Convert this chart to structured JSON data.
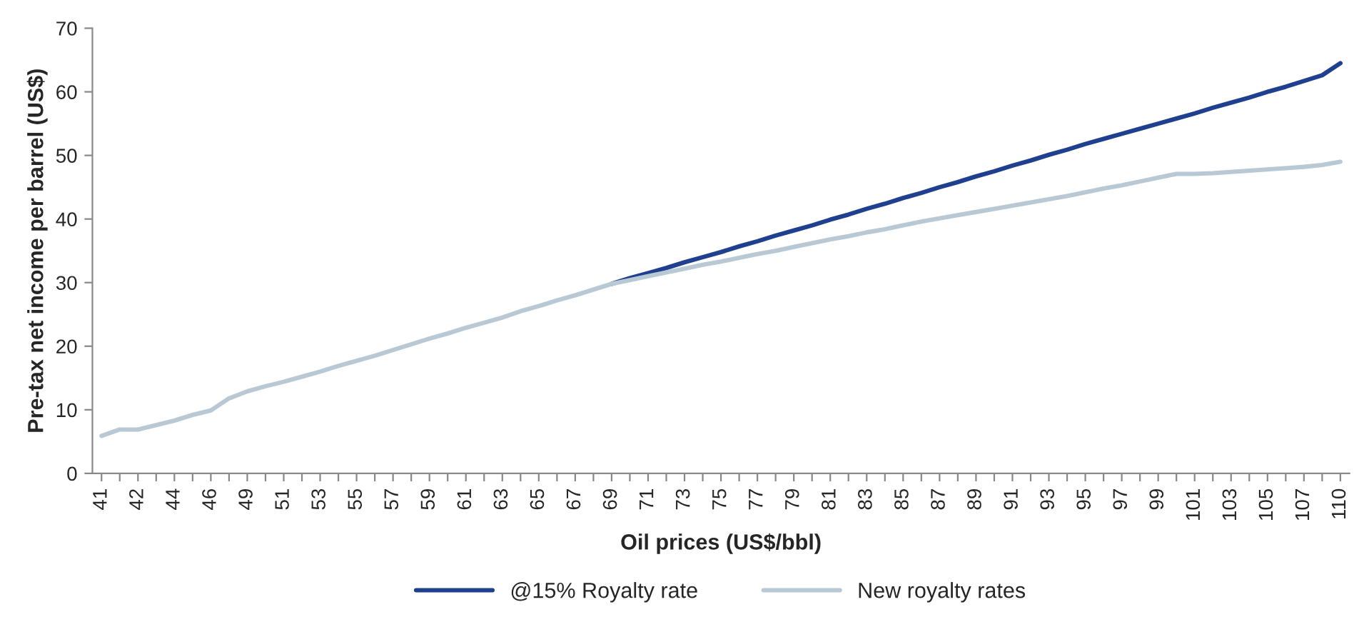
{
  "chart_data": {
    "type": "line",
    "xlabel": "Oil prices (US$/bbl)",
    "ylabel": "Pre-tax net income per barrel (US$)",
    "categories": [
      "41",
      null,
      "42",
      null,
      "44",
      null,
      "46",
      null,
      "49",
      null,
      "51",
      null,
      "53",
      null,
      "55",
      null,
      "57",
      null,
      "59",
      null,
      "61",
      null,
      "63",
      null,
      "65",
      null,
      "67",
      null,
      "69",
      null,
      "71",
      null,
      "73",
      null,
      "75",
      null,
      "77",
      null,
      "79",
      null,
      "81",
      null,
      "83",
      null,
      "85",
      null,
      "87",
      null,
      "89",
      null,
      "91",
      null,
      "93",
      null,
      "95",
      null,
      "97",
      null,
      "99",
      null,
      "101",
      null,
      "103",
      null,
      "105",
      null,
      "107",
      null,
      "110"
    ],
    "series": [
      {
        "name": "@15% Royalty rate",
        "color": "#1f3f8f",
        "values": [
          null,
          null,
          null,
          null,
          null,
          null,
          null,
          null,
          null,
          null,
          null,
          null,
          null,
          null,
          null,
          null,
          null,
          null,
          null,
          null,
          null,
          null,
          null,
          null,
          null,
          null,
          null,
          null,
          29.8,
          30.7,
          31.5,
          32.3,
          33.2,
          34.0,
          34.8,
          35.7,
          36.5,
          37.4,
          38.2,
          39.0,
          39.9,
          40.7,
          41.6,
          42.4,
          43.3,
          44.1,
          45.0,
          45.8,
          46.7,
          47.5,
          48.4,
          49.2,
          50.1,
          50.9,
          51.8,
          52.6,
          53.4,
          54.2,
          55.0,
          55.8,
          56.6,
          57.5,
          58.3,
          59.1,
          60.0,
          60.8,
          61.7,
          62.6,
          64.5
        ]
      },
      {
        "name": "New royalty rates",
        "color": "#b8c8d4",
        "values": [
          5.9,
          6.9,
          6.9,
          7.6,
          8.3,
          9.2,
          9.9,
          11.8,
          12.9,
          13.7,
          14.4,
          15.2,
          16.0,
          16.9,
          17.7,
          18.5,
          19.4,
          20.3,
          21.2,
          22.0,
          22.9,
          23.7,
          24.5,
          25.5,
          26.3,
          27.2,
          28.0,
          28.9,
          29.8,
          30.4,
          31.0,
          31.6,
          32.2,
          32.8,
          33.3,
          33.9,
          34.5,
          35.0,
          35.6,
          36.2,
          36.8,
          37.3,
          37.9,
          38.4,
          39.0,
          39.6,
          40.1,
          40.6,
          41.1,
          41.6,
          42.1,
          42.6,
          43.1,
          43.6,
          44.2,
          44.8,
          45.3,
          45.9,
          46.5,
          47.1,
          47.1,
          47.2,
          47.4,
          47.6,
          47.8,
          48.0,
          48.2,
          48.5,
          49.0
        ]
      }
    ],
    "ylim": [
      0,
      70
    ],
    "yticks": [
      0,
      10,
      20,
      30,
      40,
      50,
      60,
      70
    ],
    "grid": false,
    "legend": "bottom",
    "marker": "none",
    "line_style": "solid"
  }
}
